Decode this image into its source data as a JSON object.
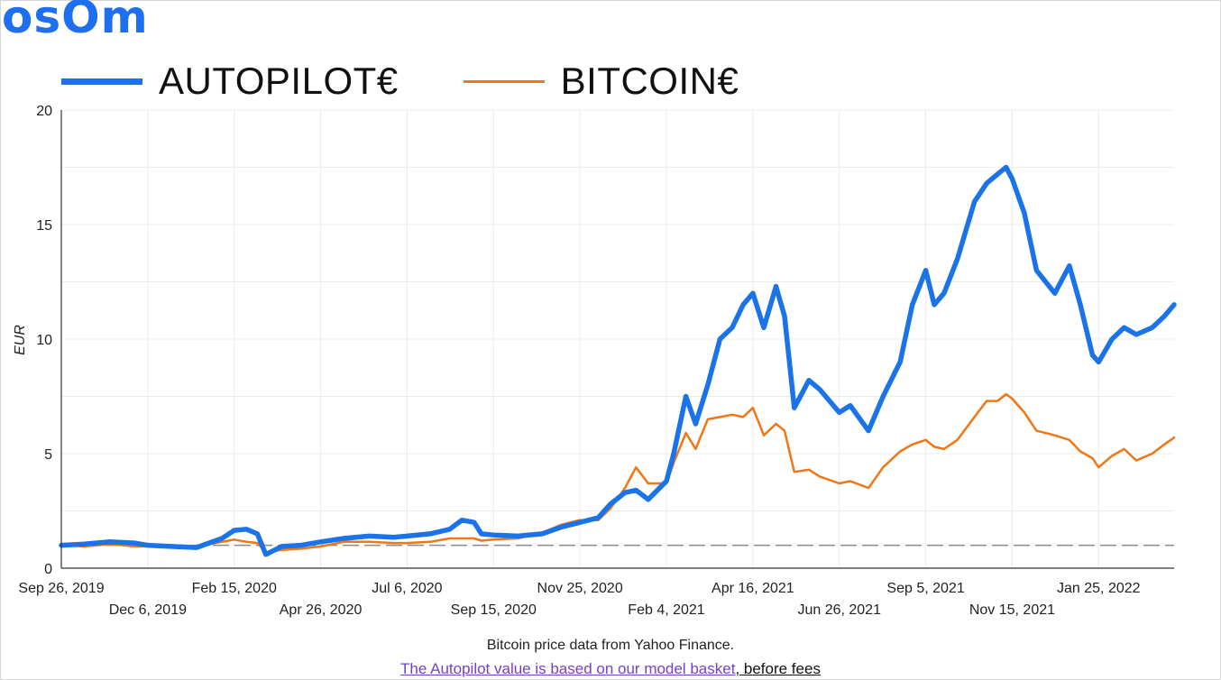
{
  "brand": {
    "logo_text": "osOm"
  },
  "colors": {
    "autopilot": "#1a73e8",
    "bitcoin": "#f07616",
    "baseline": "#8a8a8a",
    "grid": "#ececec",
    "link": "#7a3fc8"
  },
  "footer": {
    "source_text": "Bitcoin price data from Yahoo Finance.",
    "link_text": "The Autopilot value is based on our model basket",
    "link_suffix": ", before fees"
  },
  "chart_data": {
    "type": "line",
    "title": "",
    "xlabel": "",
    "ylabel": "EUR",
    "ylim": [
      0,
      20
    ],
    "yticks": [
      0,
      5,
      10,
      15,
      20
    ],
    "xlim": [
      "2019-09-26",
      "2022-03-28"
    ],
    "xticks": [
      "Sep 26, 2019",
      "Dec 6, 2019",
      "Feb 15, 2020",
      "Apr 26, 2020",
      "Jul 6, 2020",
      "Sep 15, 2020",
      "Nov 25, 2020",
      "Feb 4, 2021",
      "Apr 16, 2021",
      "Jun 26, 2021",
      "Sep 5, 2021",
      "Nov 15, 2021",
      "Jan 25, 2022"
    ],
    "grid": true,
    "legend_position": "top-left",
    "reference_line": {
      "y": 1,
      "style": "dashed"
    },
    "series": [
      {
        "name": "AUTOPILOT€",
        "color": "#1a73e8",
        "points": [
          [
            "2019-09-26",
            1.0
          ],
          [
            "2019-10-15",
            1.05
          ],
          [
            "2019-11-05",
            1.15
          ],
          [
            "2019-11-25",
            1.1
          ],
          [
            "2019-12-06",
            1.0
          ],
          [
            "2019-12-25",
            0.95
          ],
          [
            "2020-01-15",
            0.9
          ],
          [
            "2020-02-05",
            1.3
          ],
          [
            "2020-02-15",
            1.65
          ],
          [
            "2020-02-25",
            1.7
          ],
          [
            "2020-03-05",
            1.5
          ],
          [
            "2020-03-12",
            0.6
          ],
          [
            "2020-03-25",
            0.95
          ],
          [
            "2020-04-10",
            1.0
          ],
          [
            "2020-04-26",
            1.15
          ],
          [
            "2020-05-15",
            1.3
          ],
          [
            "2020-06-05",
            1.4
          ],
          [
            "2020-06-25",
            1.35
          ],
          [
            "2020-07-06",
            1.4
          ],
          [
            "2020-07-25",
            1.5
          ],
          [
            "2020-08-10",
            1.7
          ],
          [
            "2020-08-20",
            2.1
          ],
          [
            "2020-08-30",
            2.0
          ],
          [
            "2020-09-05",
            1.5
          ],
          [
            "2020-09-15",
            1.45
          ],
          [
            "2020-10-05",
            1.4
          ],
          [
            "2020-10-25",
            1.5
          ],
          [
            "2020-11-10",
            1.8
          ],
          [
            "2020-11-25",
            2.0
          ],
          [
            "2020-12-10",
            2.2
          ],
          [
            "2020-12-20",
            2.8
          ],
          [
            "2021-01-01",
            3.3
          ],
          [
            "2021-01-10",
            3.4
          ],
          [
            "2021-01-20",
            3.0
          ],
          [
            "2021-02-04",
            3.8
          ],
          [
            "2021-02-10",
            5.0
          ],
          [
            "2021-02-20",
            7.5
          ],
          [
            "2021-02-28",
            6.3
          ],
          [
            "2021-03-10",
            8.0
          ],
          [
            "2021-03-20",
            10.0
          ],
          [
            "2021-03-30",
            10.5
          ],
          [
            "2021-04-08",
            11.5
          ],
          [
            "2021-04-16",
            12.0
          ],
          [
            "2021-04-25",
            10.5
          ],
          [
            "2021-05-05",
            12.3
          ],
          [
            "2021-05-12",
            11.0
          ],
          [
            "2021-05-20",
            7.0
          ],
          [
            "2021-06-01",
            8.2
          ],
          [
            "2021-06-10",
            7.8
          ],
          [
            "2021-06-26",
            6.8
          ],
          [
            "2021-07-05",
            7.1
          ],
          [
            "2021-07-20",
            6.0
          ],
          [
            "2021-08-01",
            7.5
          ],
          [
            "2021-08-15",
            9.0
          ],
          [
            "2021-08-25",
            11.5
          ],
          [
            "2021-09-05",
            13.0
          ],
          [
            "2021-09-12",
            11.5
          ],
          [
            "2021-09-20",
            12.0
          ],
          [
            "2021-10-01",
            13.5
          ],
          [
            "2021-10-15",
            16.0
          ],
          [
            "2021-10-25",
            16.8
          ],
          [
            "2021-11-03",
            17.2
          ],
          [
            "2021-11-10",
            17.5
          ],
          [
            "2021-11-15",
            17.0
          ],
          [
            "2021-11-25",
            15.5
          ],
          [
            "2021-12-05",
            13.0
          ],
          [
            "2021-12-20",
            12.0
          ],
          [
            "2022-01-01",
            13.2
          ],
          [
            "2022-01-10",
            11.5
          ],
          [
            "2022-01-20",
            9.3
          ],
          [
            "2022-01-25",
            9.0
          ],
          [
            "2022-02-05",
            10.0
          ],
          [
            "2022-02-15",
            10.5
          ],
          [
            "2022-02-25",
            10.2
          ],
          [
            "2022-03-10",
            10.5
          ],
          [
            "2022-03-20",
            11.0
          ],
          [
            "2022-03-28",
            11.5
          ]
        ]
      },
      {
        "name": "BITCOIN€",
        "color": "#f07616",
        "points": [
          [
            "2019-09-26",
            1.0
          ],
          [
            "2019-10-15",
            0.95
          ],
          [
            "2019-11-05",
            1.05
          ],
          [
            "2019-11-25",
            0.95
          ],
          [
            "2019-12-06",
            0.95
          ],
          [
            "2019-12-25",
            0.92
          ],
          [
            "2020-01-15",
            0.95
          ],
          [
            "2020-02-05",
            1.15
          ],
          [
            "2020-02-15",
            1.25
          ],
          [
            "2020-02-25",
            1.15
          ],
          [
            "2020-03-05",
            1.1
          ],
          [
            "2020-03-12",
            0.7
          ],
          [
            "2020-03-25",
            0.8
          ],
          [
            "2020-04-10",
            0.85
          ],
          [
            "2020-04-26",
            0.95
          ],
          [
            "2020-05-15",
            1.15
          ],
          [
            "2020-06-05",
            1.15
          ],
          [
            "2020-06-25",
            1.1
          ],
          [
            "2020-07-06",
            1.1
          ],
          [
            "2020-07-25",
            1.15
          ],
          [
            "2020-08-10",
            1.3
          ],
          [
            "2020-08-20",
            1.3
          ],
          [
            "2020-08-30",
            1.3
          ],
          [
            "2020-09-05",
            1.2
          ],
          [
            "2020-09-15",
            1.25
          ],
          [
            "2020-10-05",
            1.3
          ],
          [
            "2020-10-25",
            1.55
          ],
          [
            "2020-11-10",
            1.9
          ],
          [
            "2020-11-25",
            2.1
          ],
          [
            "2020-12-10",
            2.1
          ],
          [
            "2020-12-20",
            2.6
          ],
          [
            "2021-01-01",
            3.5
          ],
          [
            "2021-01-10",
            4.4
          ],
          [
            "2021-01-20",
            3.7
          ],
          [
            "2021-02-04",
            3.7
          ],
          [
            "2021-02-10",
            4.6
          ],
          [
            "2021-02-20",
            5.9
          ],
          [
            "2021-02-28",
            5.2
          ],
          [
            "2021-03-10",
            6.5
          ],
          [
            "2021-03-20",
            6.6
          ],
          [
            "2021-03-30",
            6.7
          ],
          [
            "2021-04-08",
            6.6
          ],
          [
            "2021-04-16",
            7.0
          ],
          [
            "2021-04-25",
            5.8
          ],
          [
            "2021-05-05",
            6.3
          ],
          [
            "2021-05-12",
            6.0
          ],
          [
            "2021-05-20",
            4.2
          ],
          [
            "2021-06-01",
            4.3
          ],
          [
            "2021-06-10",
            4.0
          ],
          [
            "2021-06-26",
            3.7
          ],
          [
            "2021-07-05",
            3.8
          ],
          [
            "2021-07-20",
            3.5
          ],
          [
            "2021-08-01",
            4.4
          ],
          [
            "2021-08-15",
            5.1
          ],
          [
            "2021-08-25",
            5.4
          ],
          [
            "2021-09-05",
            5.6
          ],
          [
            "2021-09-12",
            5.3
          ],
          [
            "2021-09-20",
            5.2
          ],
          [
            "2021-10-01",
            5.6
          ],
          [
            "2021-10-15",
            6.6
          ],
          [
            "2021-10-25",
            7.3
          ],
          [
            "2021-11-03",
            7.3
          ],
          [
            "2021-11-10",
            7.6
          ],
          [
            "2021-11-15",
            7.4
          ],
          [
            "2021-11-25",
            6.8
          ],
          [
            "2021-12-05",
            6.0
          ],
          [
            "2021-12-20",
            5.8
          ],
          [
            "2022-01-01",
            5.6
          ],
          [
            "2022-01-10",
            5.1
          ],
          [
            "2022-01-20",
            4.8
          ],
          [
            "2022-01-25",
            4.4
          ],
          [
            "2022-02-05",
            4.9
          ],
          [
            "2022-02-15",
            5.2
          ],
          [
            "2022-02-25",
            4.7
          ],
          [
            "2022-03-10",
            5.0
          ],
          [
            "2022-03-20",
            5.4
          ],
          [
            "2022-03-28",
            5.7
          ]
        ]
      }
    ]
  }
}
